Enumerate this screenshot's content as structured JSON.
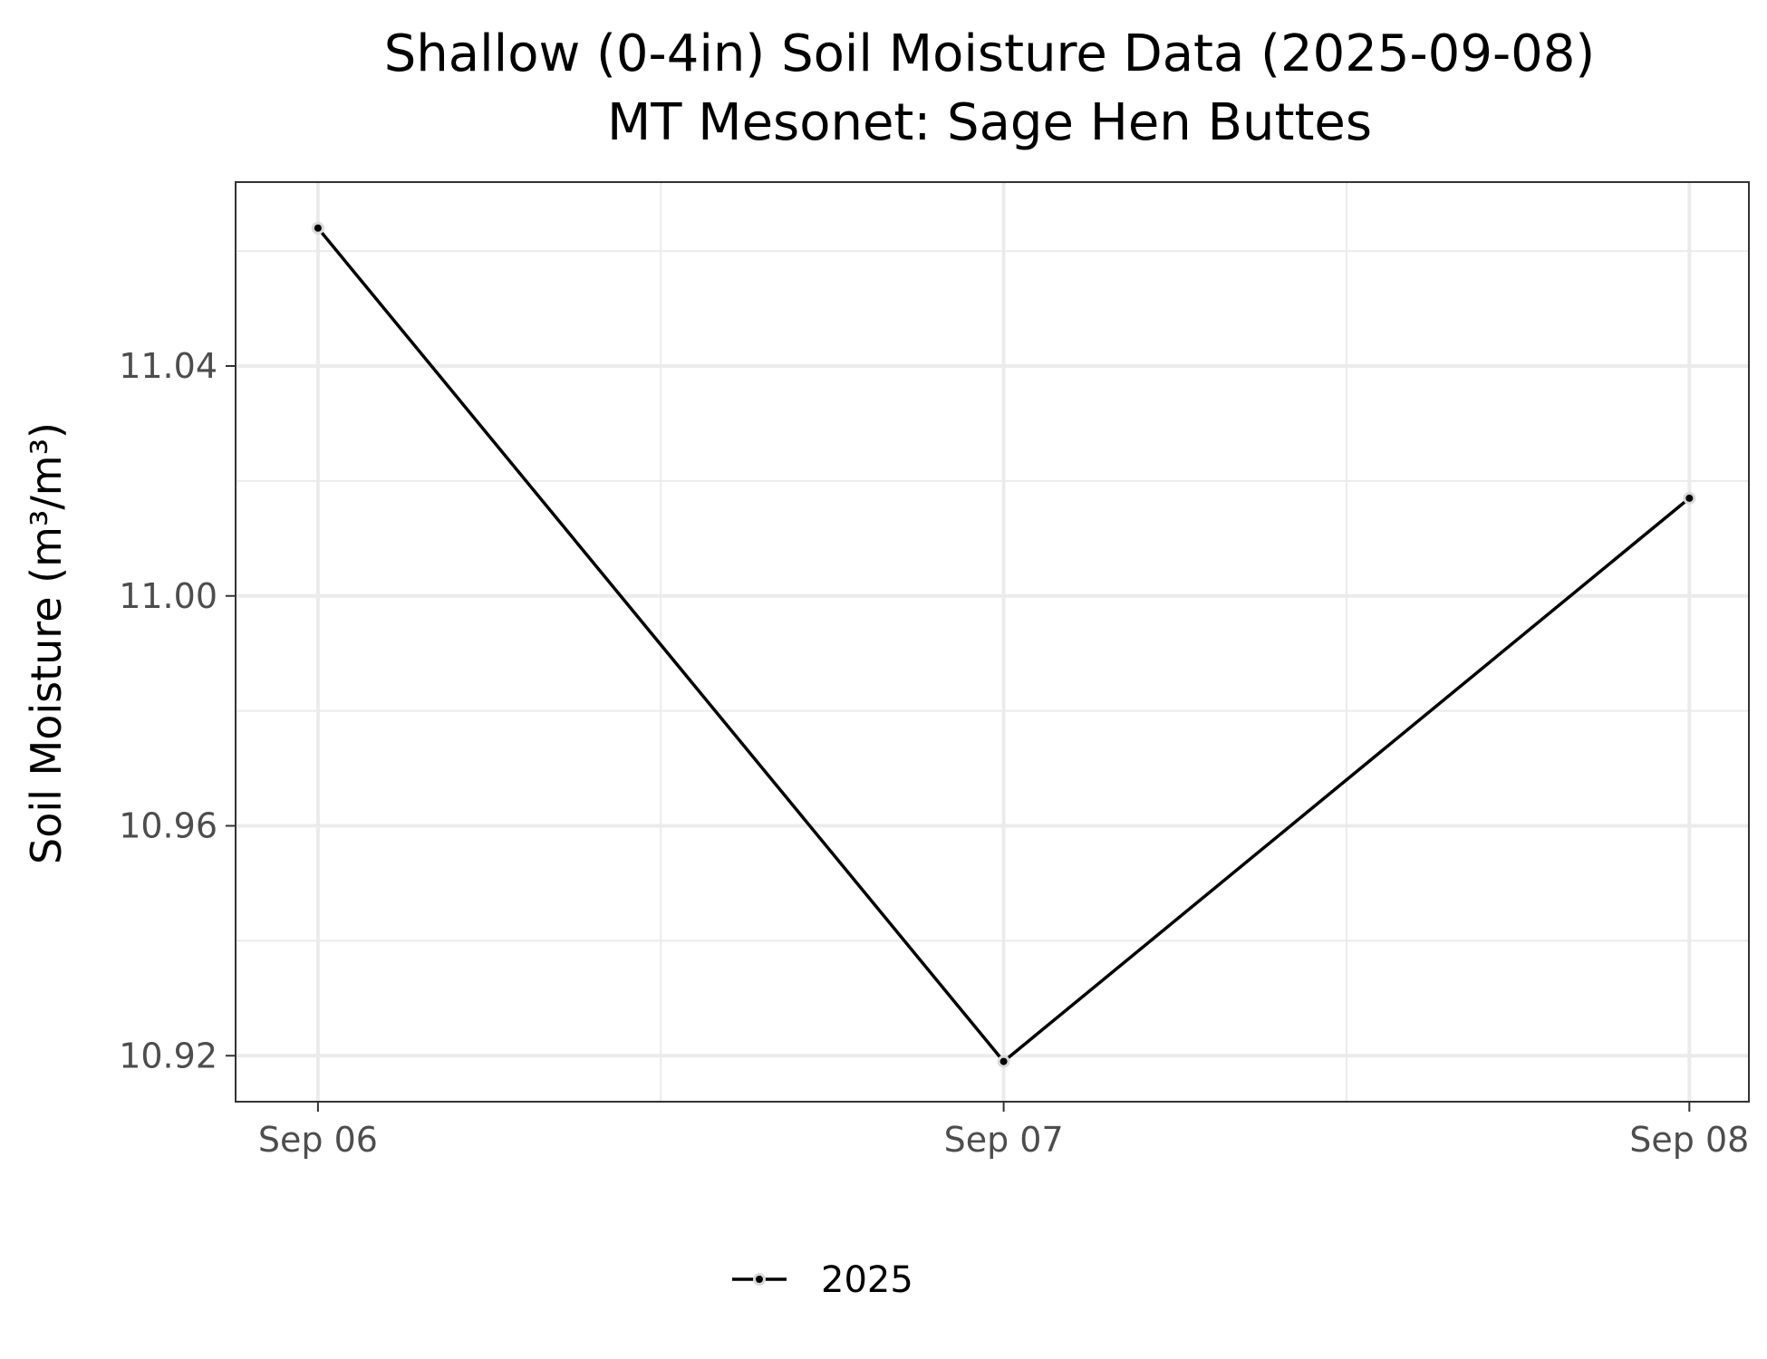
{
  "chart_data": {
    "type": "line",
    "title": "Shallow (0-4in) Soil Moisture Data (2025-09-08)",
    "subtitle": "MT Mesonet: Sage Hen Buttes",
    "xlabel": "",
    "ylabel": "Soil Moisture (m³/m³)",
    "x": [
      "2025-09-06",
      "2025-09-07",
      "2025-09-08"
    ],
    "x_tick_labels": [
      "Sep 06",
      "Sep 07",
      "Sep 08"
    ],
    "xlim": [
      "2025-09-05T21:07",
      "2025-09-08T02:05"
    ],
    "ylim": [
      10.912,
      11.072
    ],
    "y_ticks": [
      10.92,
      10.96,
      11.0,
      11.04
    ],
    "y_tick_labels": [
      "10.92",
      "10.96",
      "11.00",
      "11.04"
    ],
    "series": [
      {
        "name": "2025",
        "values": [
          11.064,
          10.919,
          11.017
        ],
        "color": "#000000"
      }
    ],
    "grid": true,
    "legend": "bottom",
    "colors": {
      "panel_border": "#333333",
      "grid": "#ebebeb",
      "tick_text": "#4d4d4d",
      "point_outline": "#d9d9d9"
    }
  }
}
